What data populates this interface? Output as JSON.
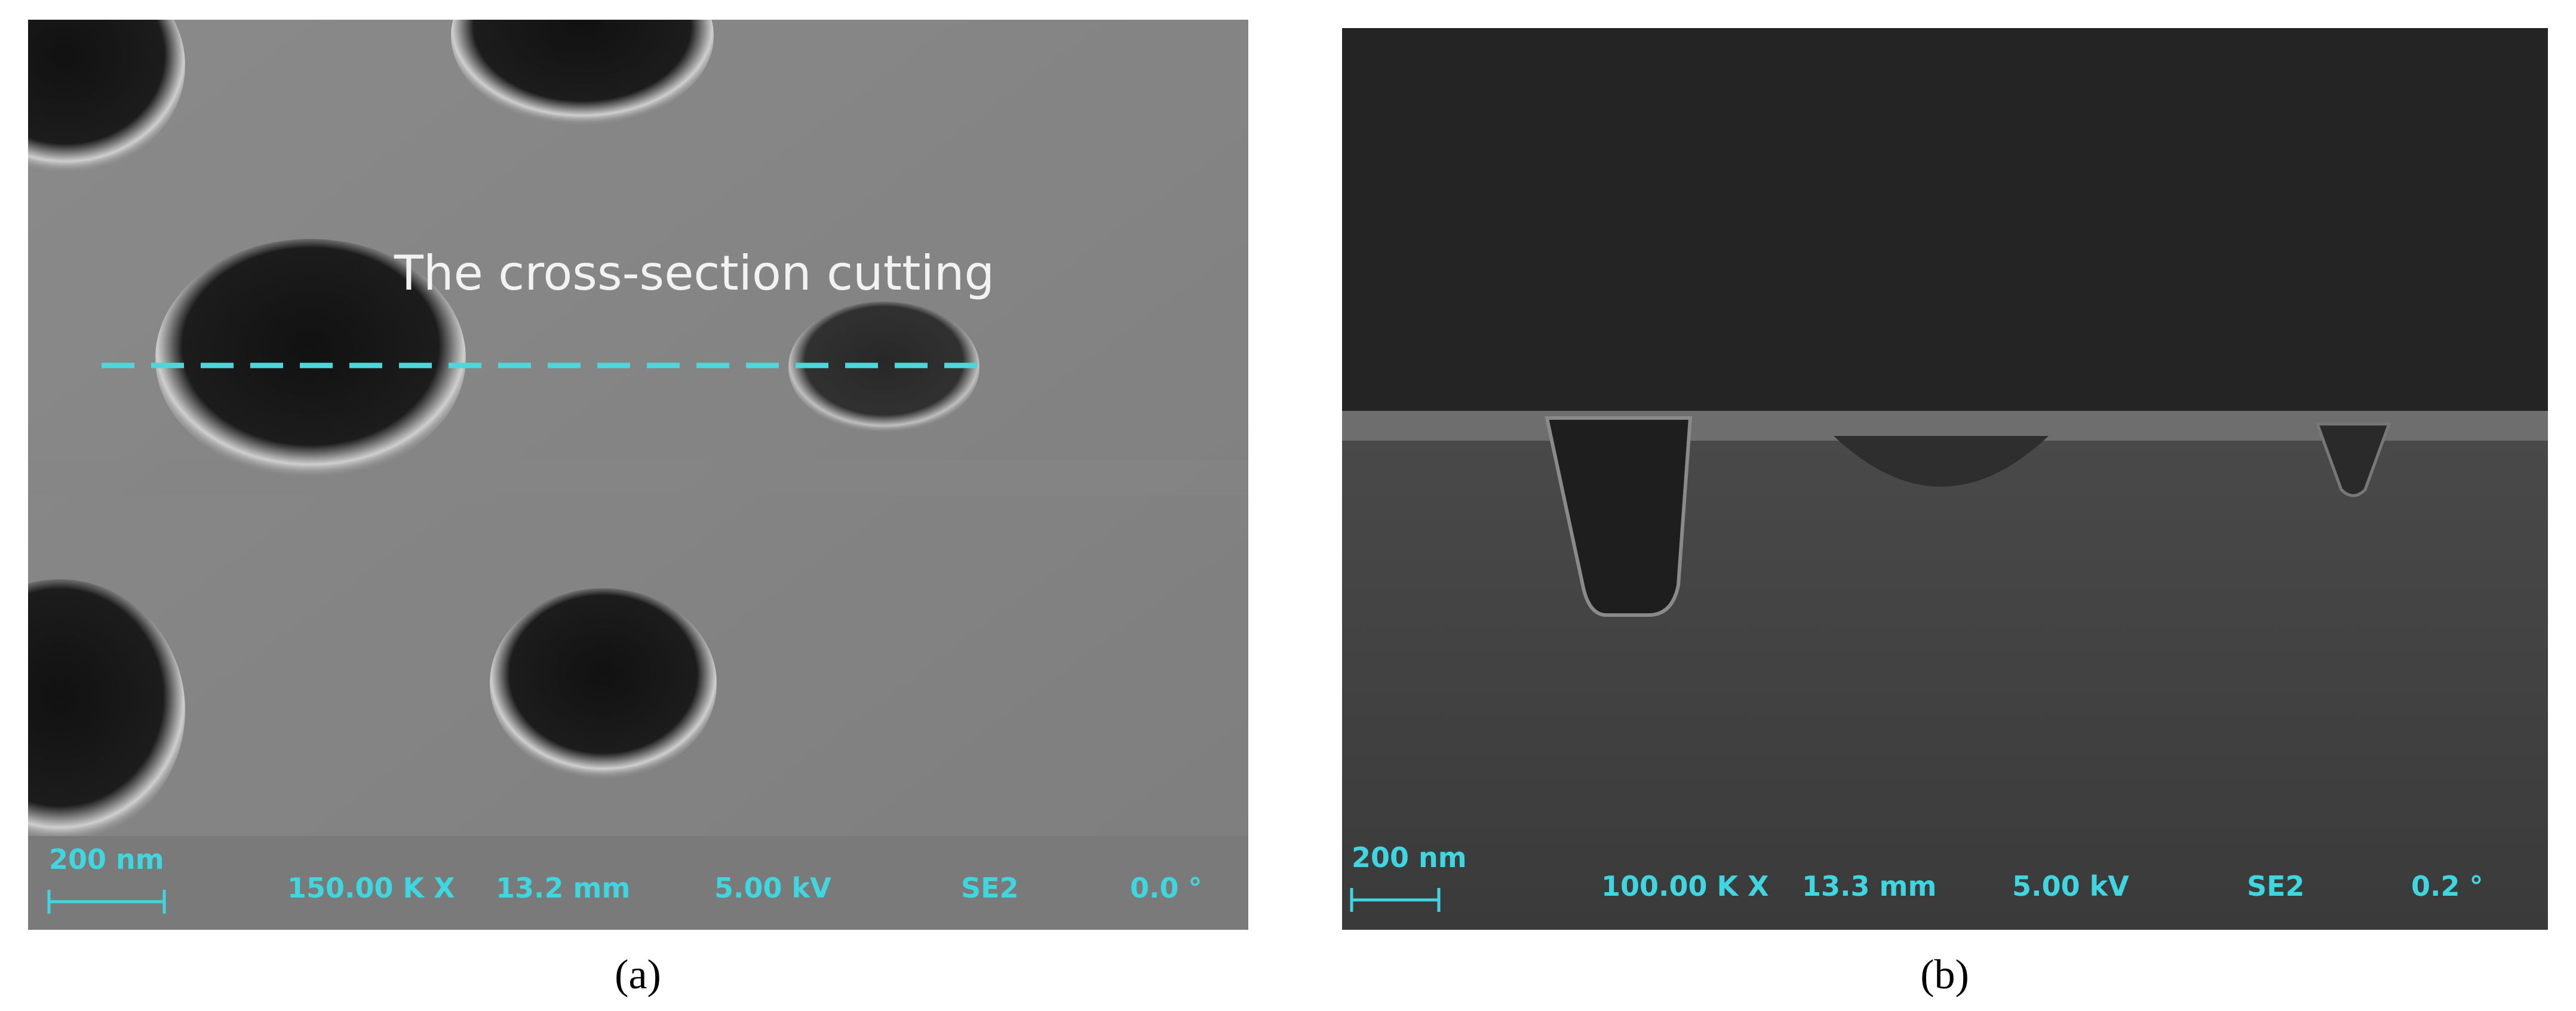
{
  "panels": [
    {
      "annotation": "The cross-section cutting",
      "scale_bar": "200 nm",
      "info": [
        "150.00 K X",
        "13.2 mm",
        "5.00 kV",
        "SE2",
        "0.0 °"
      ],
      "caption": "(a)"
    },
    {
      "scale_bar": "200 nm",
      "info": [
        "100.00 K X",
        "13.3 mm",
        "5.00 kV",
        "SE2",
        "0.2 °"
      ],
      "caption": "(b)"
    }
  ]
}
